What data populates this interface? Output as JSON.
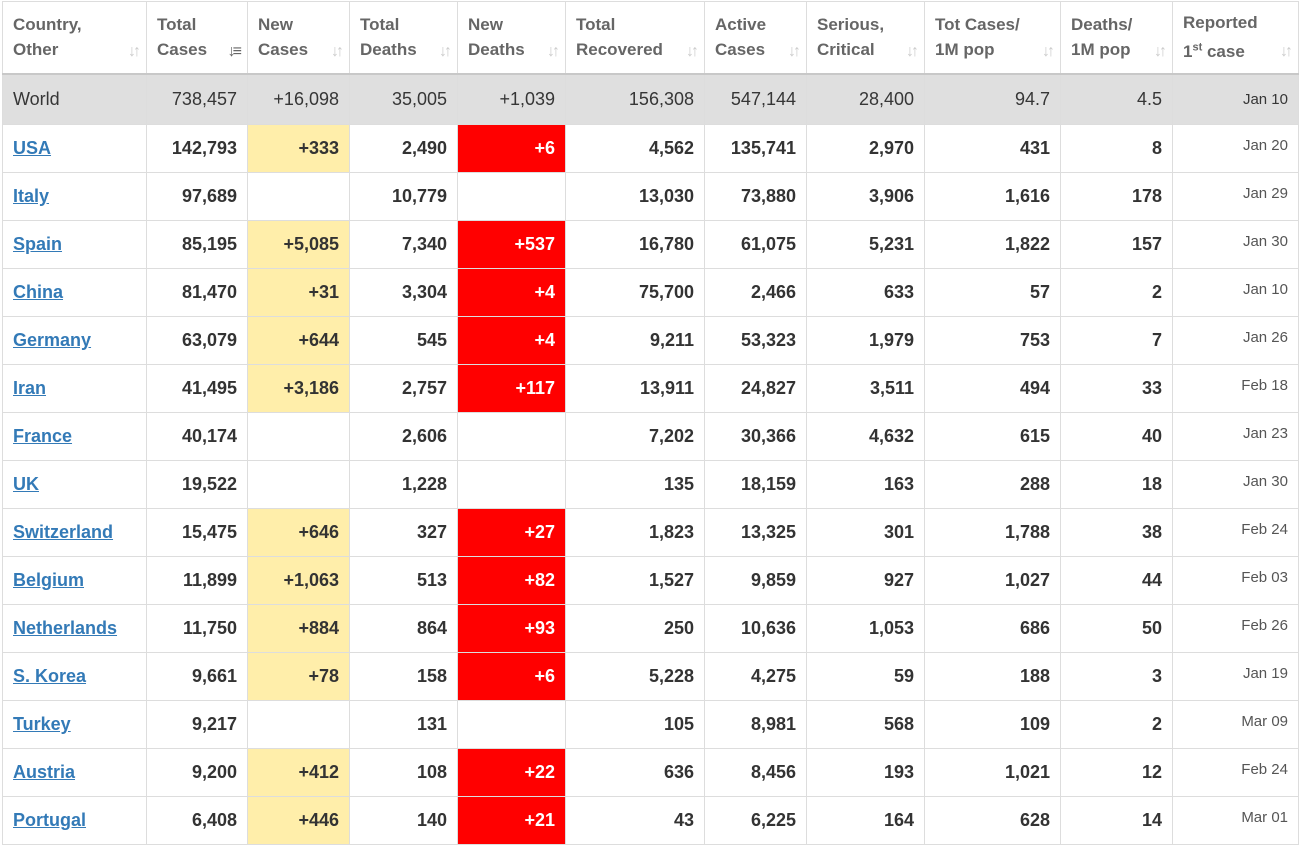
{
  "headers": [
    {
      "line1": "Country,",
      "line2": "Other",
      "sort_icon": "sort-icon"
    },
    {
      "line1": "Total",
      "line2": "Cases",
      "sort_icon": "sort-desc-icon"
    },
    {
      "line1": "New",
      "line2": "Cases",
      "sort_icon": "sort-icon"
    },
    {
      "line1": "Total",
      "line2": "Deaths",
      "sort_icon": "sort-icon"
    },
    {
      "line1": "New",
      "line2": "Deaths",
      "sort_icon": "sort-icon"
    },
    {
      "line1": "Total",
      "line2": "Recovered",
      "sort_icon": "sort-icon"
    },
    {
      "line1": "Active",
      "line2": "Cases",
      "sort_icon": "sort-icon"
    },
    {
      "line1": "Serious,",
      "line2": "Critical",
      "sort_icon": "sort-icon"
    },
    {
      "line1": "Tot Cases/",
      "line2": "1M pop",
      "sort_icon": "sort-icon"
    },
    {
      "line1": "Deaths/",
      "line2": "1M pop",
      "sort_icon": "sort-icon"
    },
    {
      "line1": "Reported",
      "line2_sup": "st",
      "line2_pre": "1",
      "line2_post": " case",
      "sort_icon": "sort-icon"
    }
  ],
  "world": {
    "country": "World",
    "total_cases": "738,457",
    "new_cases": "+16,098",
    "total_deaths": "35,005",
    "new_deaths": "+1,039",
    "total_recovered": "156,308",
    "active_cases": "547,144",
    "serious_critical": "28,400",
    "cases_per_1m": "94.7",
    "deaths_per_1m": "4.5",
    "first_case": "Jan 10"
  },
  "rows": [
    {
      "country": "USA",
      "total_cases": "142,793",
      "new_cases": "+333",
      "total_deaths": "2,490",
      "new_deaths": "+6",
      "total_recovered": "4,562",
      "active_cases": "135,741",
      "serious_critical": "2,970",
      "cases_per_1m": "431",
      "deaths_per_1m": "8",
      "first_case": "Jan 20"
    },
    {
      "country": "Italy",
      "total_cases": "97,689",
      "new_cases": "",
      "total_deaths": "10,779",
      "new_deaths": "",
      "total_recovered": "13,030",
      "active_cases": "73,880",
      "serious_critical": "3,906",
      "cases_per_1m": "1,616",
      "deaths_per_1m": "178",
      "first_case": "Jan 29"
    },
    {
      "country": "Spain",
      "total_cases": "85,195",
      "new_cases": "+5,085",
      "total_deaths": "7,340",
      "new_deaths": "+537",
      "total_recovered": "16,780",
      "active_cases": "61,075",
      "serious_critical": "5,231",
      "cases_per_1m": "1,822",
      "deaths_per_1m": "157",
      "first_case": "Jan 30"
    },
    {
      "country": "China",
      "total_cases": "81,470",
      "new_cases": "+31",
      "total_deaths": "3,304",
      "new_deaths": "+4",
      "total_recovered": "75,700",
      "active_cases": "2,466",
      "serious_critical": "633",
      "cases_per_1m": "57",
      "deaths_per_1m": "2",
      "first_case": "Jan 10"
    },
    {
      "country": "Germany",
      "total_cases": "63,079",
      "new_cases": "+644",
      "total_deaths": "545",
      "new_deaths": "+4",
      "total_recovered": "9,211",
      "active_cases": "53,323",
      "serious_critical": "1,979",
      "cases_per_1m": "753",
      "deaths_per_1m": "7",
      "first_case": "Jan 26"
    },
    {
      "country": "Iran",
      "total_cases": "41,495",
      "new_cases": "+3,186",
      "total_deaths": "2,757",
      "new_deaths": "+117",
      "total_recovered": "13,911",
      "active_cases": "24,827",
      "serious_critical": "3,511",
      "cases_per_1m": "494",
      "deaths_per_1m": "33",
      "first_case": "Feb 18"
    },
    {
      "country": "France",
      "total_cases": "40,174",
      "new_cases": "",
      "total_deaths": "2,606",
      "new_deaths": "",
      "total_recovered": "7,202",
      "active_cases": "30,366",
      "serious_critical": "4,632",
      "cases_per_1m": "615",
      "deaths_per_1m": "40",
      "first_case": "Jan 23"
    },
    {
      "country": "UK",
      "total_cases": "19,522",
      "new_cases": "",
      "total_deaths": "1,228",
      "new_deaths": "",
      "total_recovered": "135",
      "active_cases": "18,159",
      "serious_critical": "163",
      "cases_per_1m": "288",
      "deaths_per_1m": "18",
      "first_case": "Jan 30"
    },
    {
      "country": "Switzerland",
      "total_cases": "15,475",
      "new_cases": "+646",
      "total_deaths": "327",
      "new_deaths": "+27",
      "total_recovered": "1,823",
      "active_cases": "13,325",
      "serious_critical": "301",
      "cases_per_1m": "1,788",
      "deaths_per_1m": "38",
      "first_case": "Feb 24"
    },
    {
      "country": "Belgium",
      "total_cases": "11,899",
      "new_cases": "+1,063",
      "total_deaths": "513",
      "new_deaths": "+82",
      "total_recovered": "1,527",
      "active_cases": "9,859",
      "serious_critical": "927",
      "cases_per_1m": "1,027",
      "deaths_per_1m": "44",
      "first_case": "Feb 03"
    },
    {
      "country": "Netherlands",
      "total_cases": "11,750",
      "new_cases": "+884",
      "total_deaths": "864",
      "new_deaths": "+93",
      "total_recovered": "250",
      "active_cases": "10,636",
      "serious_critical": "1,053",
      "cases_per_1m": "686",
      "deaths_per_1m": "50",
      "first_case": "Feb 26"
    },
    {
      "country": "S. Korea",
      "total_cases": "9,661",
      "new_cases": "+78",
      "total_deaths": "158",
      "new_deaths": "+6",
      "total_recovered": "5,228",
      "active_cases": "4,275",
      "serious_critical": "59",
      "cases_per_1m": "188",
      "deaths_per_1m": "3",
      "first_case": "Jan 19"
    },
    {
      "country": "Turkey",
      "total_cases": "9,217",
      "new_cases": "",
      "total_deaths": "131",
      "new_deaths": "",
      "total_recovered": "105",
      "active_cases": "8,981",
      "serious_critical": "568",
      "cases_per_1m": "109",
      "deaths_per_1m": "2",
      "first_case": "Mar 09"
    },
    {
      "country": "Austria",
      "total_cases": "9,200",
      "new_cases": "+412",
      "total_deaths": "108",
      "new_deaths": "+22",
      "total_recovered": "636",
      "active_cases": "8,456",
      "serious_critical": "193",
      "cases_per_1m": "1,021",
      "deaths_per_1m": "12",
      "first_case": "Feb 24"
    },
    {
      "country": "Portugal",
      "total_cases": "6,408",
      "new_cases": "+446",
      "total_deaths": "140",
      "new_deaths": "+21",
      "total_recovered": "43",
      "active_cases": "6,225",
      "serious_critical": "164",
      "cases_per_1m": "628",
      "deaths_per_1m": "14",
      "first_case": "Mar 01"
    }
  ],
  "colors": {
    "new_cases_highlight": "#ffeeaa",
    "new_deaths_highlight": "#ff0000",
    "link": "#337ab7",
    "world_row_bg": "#dfdfdf"
  }
}
